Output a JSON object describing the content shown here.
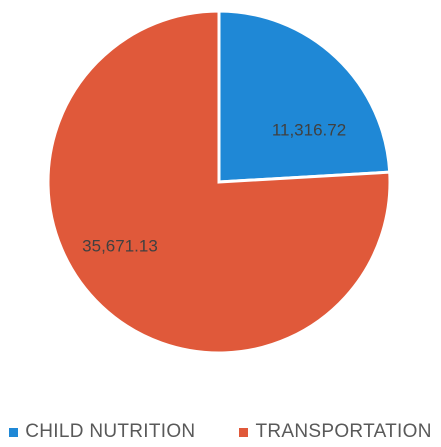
{
  "chart_data": {
    "type": "pie",
    "categories": [
      "CHILD NUTRITION",
      "TRANSPORTATION"
    ],
    "values": [
      11316.72,
      35671.13
    ],
    "data_labels": [
      "11,316.72",
      "35,671.13"
    ],
    "colors": [
      "#1f88d6",
      "#e0593a"
    ],
    "legend_placement": "bottom"
  }
}
